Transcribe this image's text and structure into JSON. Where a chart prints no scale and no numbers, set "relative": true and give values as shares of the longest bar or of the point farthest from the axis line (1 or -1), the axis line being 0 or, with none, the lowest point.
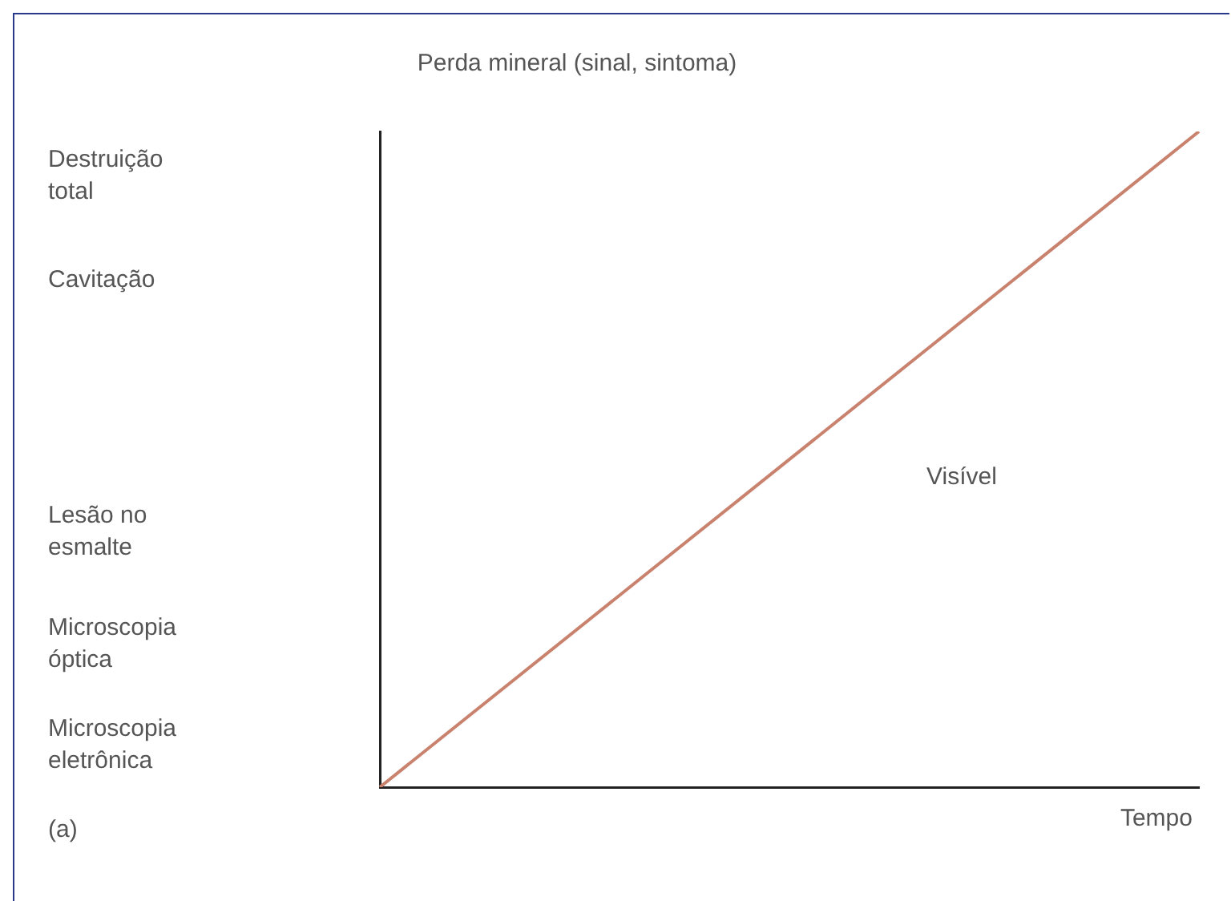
{
  "chart_data": {
    "type": "line",
    "ylabel": "Perda mineral (sinal, sintoma)",
    "xlabel": "Tempo",
    "categories": [
      null,
      null
    ],
    "series": [
      {
        "color": "#c8826e",
        "values": [
          0,
          1
        ]
      }
    ],
    "relative": true,
    "grid": false,
    "legend": false,
    "marker": "none",
    "line_style": "solid",
    "annotations": [
      "Destruição total",
      "Cavitação",
      "Lesão no esmalte",
      "Microscopia óptica",
      "Microscopia eletrônica",
      "(a)",
      "Visível"
    ]
  }
}
